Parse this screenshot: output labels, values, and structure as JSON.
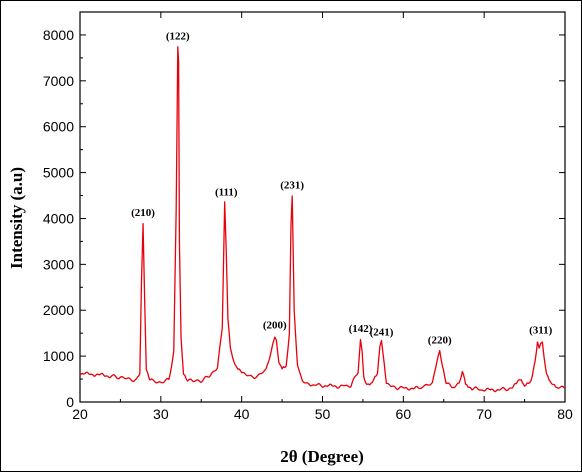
{
  "chart_data": {
    "type": "line",
    "title": "",
    "xlabel": "2θ (Degree)",
    "ylabel": "Intensity (a.u)",
    "xlim": [
      20,
      80
    ],
    "ylim": [
      0,
      8500
    ],
    "xticks": [
      20,
      30,
      40,
      50,
      60,
      70,
      80
    ],
    "yticks": [
      0,
      1000,
      2000,
      3000,
      4000,
      5000,
      6000,
      7000,
      8000
    ],
    "series_color": "#e8000b",
    "series": [
      {
        "x": [
          20,
          22,
          24,
          25,
          26,
          27,
          27.4,
          27.6,
          27.8,
          28.0,
          28.2,
          28.6,
          29,
          30,
          31,
          31.6,
          31.9,
          32.1,
          32.2,
          32.3,
          32.5,
          32.8,
          33.3,
          34,
          35,
          36,
          37,
          37.6,
          37.9,
          38.1,
          38.3,
          38.6,
          39.2,
          40,
          41,
          42,
          43,
          43.7,
          44.1,
          44.3,
          44.6,
          45.0,
          45.5,
          45.9,
          46.1,
          46.25,
          46.5,
          46.9,
          47.5,
          48.5,
          50,
          52,
          53.5,
          54.4,
          54.7,
          54.9,
          55.1,
          55.5,
          56,
          56.8,
          57.1,
          57.3,
          57.5,
          57.9,
          58.5,
          60,
          62,
          63.6,
          64.2,
          64.5,
          64.8,
          65.3,
          66,
          66.9,
          67.3,
          67.7,
          68.5,
          70,
          72,
          73.5,
          74.3,
          74.6,
          75,
          75.8,
          76.3,
          76.6,
          76.8,
          77.0,
          77.2,
          77.4,
          77.7,
          78.2,
          79,
          80
        ],
        "y": [
          620,
          600,
          560,
          540,
          500,
          480,
          650,
          2600,
          3900,
          2200,
          700,
          500,
          450,
          430,
          480,
          1100,
          4200,
          7750,
          7400,
          3500,
          1400,
          650,
          480,
          450,
          470,
          560,
          760,
          1600,
          4350,
          3200,
          1800,
          1150,
          820,
          650,
          550,
          560,
          700,
          1150,
          1450,
          1350,
          900,
          720,
          760,
          1500,
          3900,
          4500,
          2000,
          800,
          450,
          380,
          360,
          340,
          360,
          650,
          1370,
          1100,
          520,
          380,
          380,
          600,
          1200,
          1300,
          1000,
          430,
          330,
          300,
          300,
          420,
          900,
          1120,
          850,
          420,
          320,
          380,
          650,
          400,
          300,
          260,
          270,
          300,
          460,
          520,
          330,
          450,
          900,
          1340,
          1200,
          1280,
          1300,
          1000,
          600,
          400,
          320,
          300
        ]
      }
    ],
    "annotations": [
      {
        "text": "(210)",
        "x": 27.8,
        "y": 3900
      },
      {
        "text": "(122)",
        "x": 32.1,
        "y": 7750
      },
      {
        "text": "(111)",
        "x": 38.1,
        "y": 4350
      },
      {
        "text": "(200)",
        "x": 44.1,
        "y": 1450
      },
      {
        "text": "(231)",
        "x": 46.25,
        "y": 4500
      },
      {
        "text": "(142)",
        "x": 54.7,
        "y": 1370
      },
      {
        "text": "(241)",
        "x": 57.3,
        "y": 1300
      },
      {
        "text": "(220)",
        "x": 64.5,
        "y": 1120
      },
      {
        "text": "(311)",
        "x": 77.0,
        "y": 1340
      }
    ]
  }
}
